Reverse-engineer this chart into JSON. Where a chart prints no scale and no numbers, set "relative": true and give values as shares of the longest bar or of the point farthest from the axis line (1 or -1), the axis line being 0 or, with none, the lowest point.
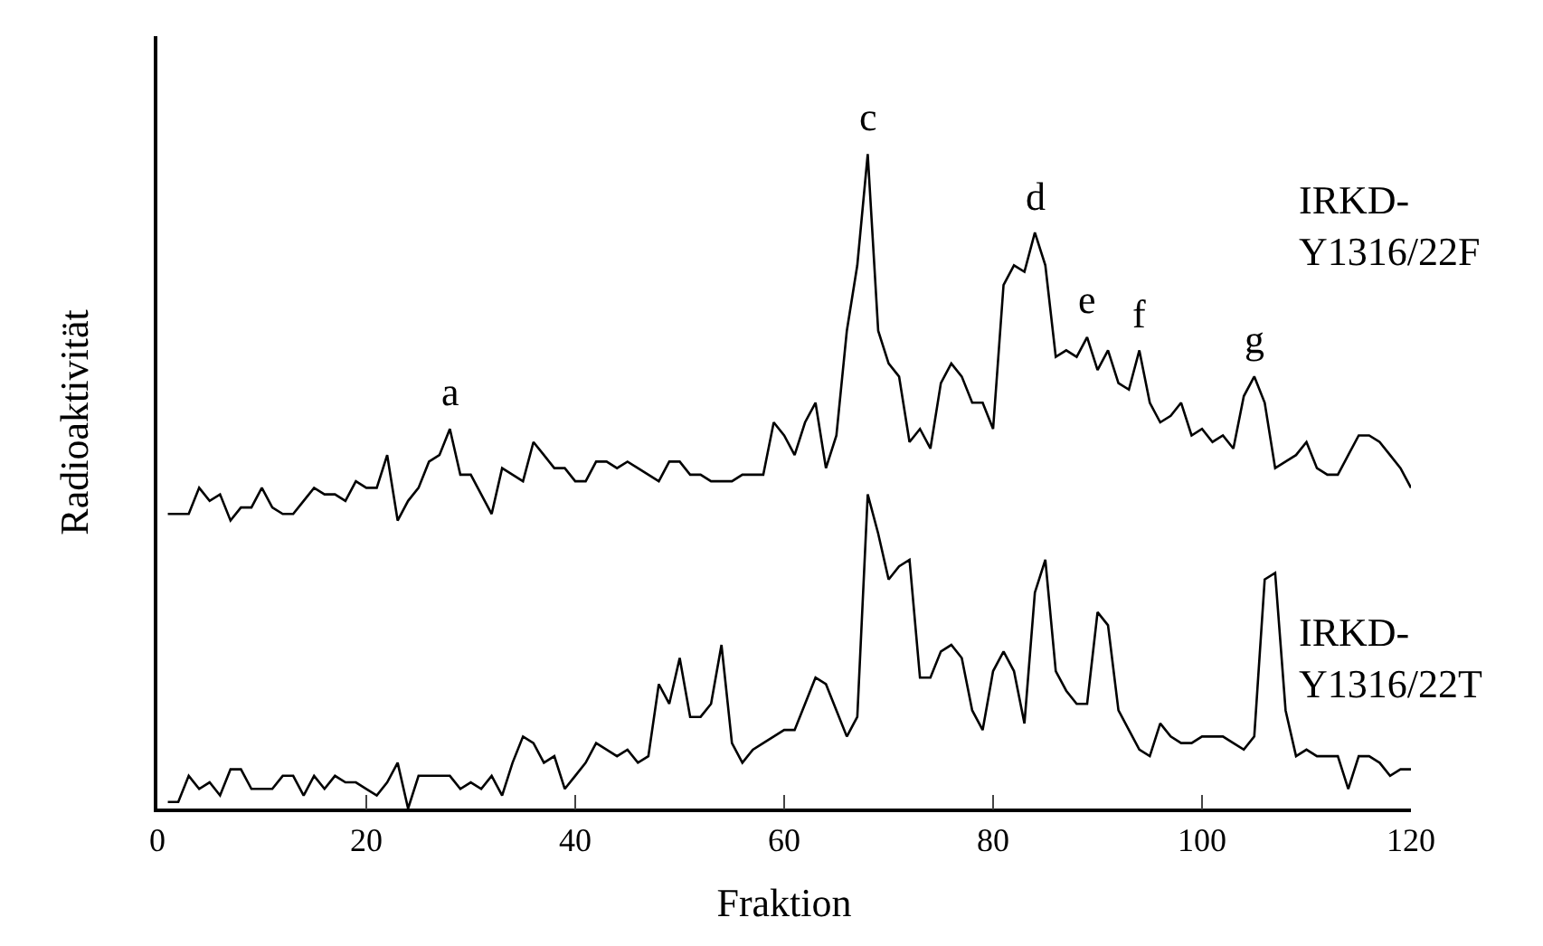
{
  "chart_data": {
    "type": "line",
    "relative": true,
    "xlabel": "Fraktion",
    "ylabel": "Radioaktivität",
    "x": [
      1,
      2,
      3,
      4,
      5,
      6,
      7,
      8,
      9,
      10,
      11,
      12,
      13,
      14,
      15,
      16,
      17,
      18,
      19,
      20,
      21,
      22,
      23,
      24,
      25,
      26,
      27,
      28,
      29,
      30,
      31,
      32,
      33,
      34,
      35,
      36,
      37,
      38,
      39,
      40,
      41,
      42,
      43,
      44,
      45,
      46,
      47,
      48,
      49,
      50,
      51,
      52,
      53,
      54,
      55,
      56,
      57,
      58,
      59,
      60,
      61,
      62,
      63,
      64,
      65,
      66,
      67,
      68,
      69,
      70,
      71,
      72,
      73,
      74,
      75,
      76,
      77,
      78,
      79,
      80,
      81,
      82,
      83,
      84,
      85,
      86,
      87,
      88,
      89,
      90,
      91,
      92,
      93,
      94,
      95,
      96,
      97,
      98,
      99,
      100,
      101,
      102,
      103,
      104,
      105,
      106,
      107,
      108,
      109,
      110,
      111,
      112,
      113,
      114,
      115,
      116,
      117,
      118,
      119,
      120
    ],
    "xlim": [
      0,
      120
    ],
    "xticks": [
      0,
      20,
      40,
      60,
      80,
      100,
      120
    ],
    "series": [
      {
        "name": "IRKD-\nY1316/22F",
        "color": "#000000",
        "values": [
          0.45,
          0.45,
          0.45,
          0.49,
          0.47,
          0.48,
          0.44,
          0.46,
          0.46,
          0.49,
          0.46,
          0.45,
          0.45,
          0.47,
          0.49,
          0.48,
          0.48,
          0.47,
          0.5,
          0.49,
          0.49,
          0.54,
          0.44,
          0.47,
          0.49,
          0.53,
          0.54,
          0.58,
          0.51,
          0.51,
          0.48,
          0.45,
          0.52,
          0.51,
          0.5,
          0.56,
          0.54,
          0.52,
          0.52,
          0.5,
          0.5,
          0.53,
          0.53,
          0.52,
          0.53,
          0.52,
          0.51,
          0.5,
          0.53,
          0.53,
          0.51,
          0.51,
          0.5,
          0.5,
          0.5,
          0.51,
          0.51,
          0.51,
          0.59,
          0.57,
          0.54,
          0.59,
          0.62,
          0.52,
          0.57,
          0.73,
          0.83,
          1.0,
          0.73,
          0.68,
          0.66,
          0.56,
          0.58,
          0.55,
          0.65,
          0.68,
          0.66,
          0.62,
          0.62,
          0.58,
          0.8,
          0.83,
          0.82,
          0.88,
          0.83,
          0.69,
          0.7,
          0.69,
          0.72,
          0.67,
          0.7,
          0.65,
          0.64,
          0.7,
          0.62,
          0.59,
          0.6,
          0.62,
          0.57,
          0.58,
          0.56,
          0.57,
          0.55,
          0.63,
          0.66,
          0.62,
          0.52,
          0.53,
          0.54,
          0.56,
          0.52,
          0.51,
          0.51,
          0.54,
          0.57,
          0.57,
          0.56,
          0.54,
          0.52,
          0.49
        ]
      },
      {
        "name": "IRKD-\nY1316/22T",
        "color": "#000000",
        "values": [
          0.01,
          0.01,
          0.05,
          0.03,
          0.04,
          0.02,
          0.06,
          0.06,
          0.03,
          0.03,
          0.03,
          0.05,
          0.05,
          0.02,
          0.05,
          0.03,
          0.05,
          0.04,
          0.04,
          0.03,
          0.02,
          0.04,
          0.07,
          0.0,
          0.05,
          0.05,
          0.05,
          0.05,
          0.03,
          0.04,
          0.03,
          0.05,
          0.02,
          0.07,
          0.11,
          0.1,
          0.07,
          0.08,
          0.03,
          0.05,
          0.07,
          0.1,
          0.09,
          0.08,
          0.09,
          0.07,
          0.08,
          0.19,
          0.16,
          0.23,
          0.14,
          0.14,
          0.16,
          0.25,
          0.1,
          0.07,
          0.09,
          0.1,
          0.11,
          0.12,
          0.12,
          0.16,
          0.2,
          0.19,
          0.15,
          0.11,
          0.14,
          0.48,
          0.42,
          0.35,
          0.37,
          0.38,
          0.2,
          0.2,
          0.24,
          0.25,
          0.23,
          0.15,
          0.12,
          0.21,
          0.24,
          0.21,
          0.13,
          0.33,
          0.38,
          0.21,
          0.18,
          0.16,
          0.16,
          0.3,
          0.28,
          0.15,
          0.12,
          0.09,
          0.08,
          0.13,
          0.11,
          0.1,
          0.1,
          0.11,
          0.11,
          0.11,
          0.1,
          0.09,
          0.11,
          0.35,
          0.36,
          0.15,
          0.08,
          0.09,
          0.08,
          0.08,
          0.08,
          0.03,
          0.08,
          0.08,
          0.07,
          0.05,
          0.06,
          0.06
        ]
      }
    ],
    "annotations": [
      {
        "text": "a",
        "x": 28,
        "y": 0.58
      },
      {
        "text": "c",
        "x": 68,
        "y": 1.0
      },
      {
        "text": "d",
        "x": 84,
        "y": 0.88
      },
      {
        "text": "e",
        "x": 89,
        "y": 0.72
      },
      {
        "text": "f",
        "x": 94,
        "y": 0.7
      },
      {
        "text": "g",
        "x": 105,
        "y": 0.66
      }
    ],
    "legend": false,
    "marker": "none",
    "line_style": "solid"
  }
}
